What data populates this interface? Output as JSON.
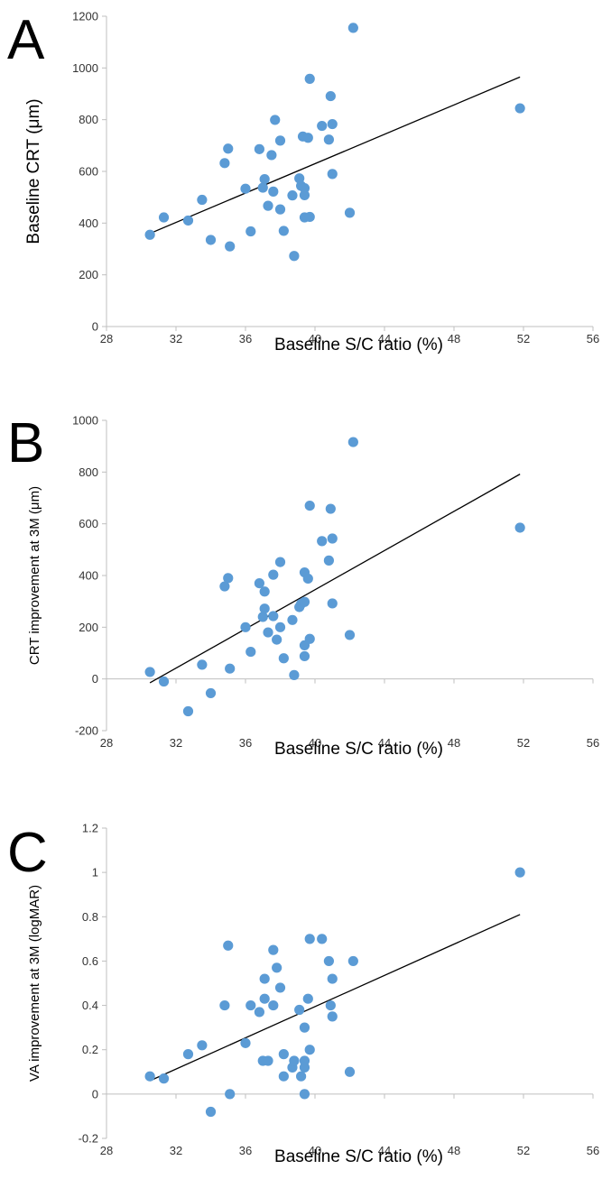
{
  "chart_data": [
    {
      "type": "scatter",
      "panel": "A",
      "xlabel": "Baseline S/C ratio (%)",
      "ylabel": "Baseline CRT (μm)",
      "xlim": [
        28,
        56
      ],
      "ylim": [
        0,
        1200
      ],
      "xticks": [
        28,
        32,
        36,
        40,
        44,
        48,
        52,
        56
      ],
      "yticks": [
        0,
        200,
        400,
        600,
        800,
        1000,
        1200
      ],
      "grid": false,
      "marker_color": "#5b9bd5",
      "points": [
        [
          30.5,
          355
        ],
        [
          31.3,
          422
        ],
        [
          32.7,
          410
        ],
        [
          33.5,
          490
        ],
        [
          34.0,
          335
        ],
        [
          34.8,
          632
        ],
        [
          35.0,
          688
        ],
        [
          35.1,
          310
        ],
        [
          36.0,
          533
        ],
        [
          36.3,
          368
        ],
        [
          36.8,
          686
        ],
        [
          37.0,
          537
        ],
        [
          37.1,
          570
        ],
        [
          37.3,
          467
        ],
        [
          37.5,
          663
        ],
        [
          37.6,
          522
        ],
        [
          37.7,
          799
        ],
        [
          38.0,
          453
        ],
        [
          38.0,
          719
        ],
        [
          38.2,
          370
        ],
        [
          38.7,
          507
        ],
        [
          38.8,
          273
        ],
        [
          39.1,
          573
        ],
        [
          39.2,
          544
        ],
        [
          39.3,
          735
        ],
        [
          39.4,
          508
        ],
        [
          39.4,
          535
        ],
        [
          39.4,
          422
        ],
        [
          39.6,
          730
        ],
        [
          39.7,
          958
        ],
        [
          39.7,
          424
        ],
        [
          40.4,
          776
        ],
        [
          40.8,
          723
        ],
        [
          40.9,
          891
        ],
        [
          41.0,
          783
        ],
        [
          41.0,
          590
        ],
        [
          42.0,
          440
        ],
        [
          42.2,
          1155
        ],
        [
          51.8,
          844
        ]
      ],
      "trendline": [
        [
          30.5,
          360
        ],
        [
          51.8,
          965
        ]
      ]
    },
    {
      "type": "scatter",
      "panel": "B",
      "xlabel": "Baseline S/C ratio (%)",
      "ylabel": "CRT improvement at 3M (μm)",
      "xlim": [
        28,
        56
      ],
      "ylim": [
        -200,
        1000
      ],
      "xticks": [
        28,
        32,
        36,
        40,
        44,
        48,
        52,
        56
      ],
      "yticks": [
        -200,
        0,
        200,
        400,
        600,
        800,
        1000
      ],
      "grid": false,
      "marker_color": "#5b9bd5",
      "points": [
        [
          30.5,
          27
        ],
        [
          31.3,
          -10
        ],
        [
          32.7,
          -125
        ],
        [
          33.5,
          55
        ],
        [
          34.0,
          -55
        ],
        [
          34.8,
          358
        ],
        [
          35.0,
          390
        ],
        [
          35.1,
          40
        ],
        [
          36.0,
          200
        ],
        [
          36.3,
          105
        ],
        [
          36.8,
          370
        ],
        [
          37.0,
          240
        ],
        [
          37.1,
          338
        ],
        [
          37.1,
          272
        ],
        [
          37.3,
          180
        ],
        [
          37.6,
          403
        ],
        [
          37.6,
          243
        ],
        [
          37.8,
          152
        ],
        [
          38.0,
          452
        ],
        [
          38.0,
          200
        ],
        [
          38.2,
          80
        ],
        [
          38.7,
          228
        ],
        [
          38.8,
          15
        ],
        [
          39.1,
          278
        ],
        [
          39.2,
          290
        ],
        [
          39.4,
          412
        ],
        [
          39.4,
          298
        ],
        [
          39.4,
          130
        ],
        [
          39.4,
          88
        ],
        [
          39.6,
          388
        ],
        [
          39.7,
          670
        ],
        [
          39.7,
          155
        ],
        [
          40.4,
          533
        ],
        [
          40.8,
          458
        ],
        [
          40.9,
          658
        ],
        [
          41.0,
          543
        ],
        [
          41.0,
          292
        ],
        [
          42.0,
          170
        ],
        [
          42.2,
          916
        ],
        [
          51.8,
          585
        ]
      ],
      "trendline": [
        [
          30.5,
          -15
        ],
        [
          51.8,
          792
        ]
      ]
    },
    {
      "type": "scatter",
      "panel": "C",
      "xlabel": "Baseline S/C ratio (%)",
      "ylabel": "VA improvement at 3M (logMAR)",
      "xlim": [
        28,
        56
      ],
      "ylim": [
        -0.2,
        1.2
      ],
      "xticks": [
        28,
        32,
        36,
        40,
        44,
        48,
        52,
        56
      ],
      "yticks": [
        "-0.2",
        "0",
        "0.2",
        "0.4",
        "0.6",
        "0.8",
        "1",
        "1.2"
      ],
      "grid": false,
      "marker_color": "#5b9bd5",
      "points": [
        [
          30.5,
          0.08
        ],
        [
          31.3,
          0.07
        ],
        [
          32.7,
          0.18
        ],
        [
          33.5,
          0.22
        ],
        [
          34.0,
          -0.08
        ],
        [
          34.8,
          0.4
        ],
        [
          35.0,
          0.67
        ],
        [
          35.1,
          0.0
        ],
        [
          36.0,
          0.23
        ],
        [
          36.3,
          0.4
        ],
        [
          36.8,
          0.37
        ],
        [
          37.0,
          0.15
        ],
        [
          37.1,
          0.52
        ],
        [
          37.1,
          0.43
        ],
        [
          37.3,
          0.15
        ],
        [
          37.6,
          0.65
        ],
        [
          37.6,
          0.4
        ],
        [
          37.8,
          0.57
        ],
        [
          38.0,
          0.48
        ],
        [
          38.2,
          0.18
        ],
        [
          38.2,
          0.08
        ],
        [
          38.7,
          0.12
        ],
        [
          38.8,
          0.15
        ],
        [
          39.1,
          0.38
        ],
        [
          39.2,
          0.08
        ],
        [
          39.4,
          0.3
        ],
        [
          39.4,
          0.15
        ],
        [
          39.4,
          0.12
        ],
        [
          39.4,
          0.0
        ],
        [
          39.6,
          0.43
        ],
        [
          39.7,
          0.7
        ],
        [
          39.7,
          0.2
        ],
        [
          40.4,
          0.7
        ],
        [
          40.8,
          0.6
        ],
        [
          40.9,
          0.4
        ],
        [
          41.0,
          0.52
        ],
        [
          41.0,
          0.35
        ],
        [
          42.0,
          0.1
        ],
        [
          42.2,
          0.6
        ],
        [
          51.8,
          1.0
        ]
      ],
      "trendline": [
        [
          30.5,
          0.06
        ],
        [
          51.8,
          0.81
        ]
      ]
    }
  ]
}
